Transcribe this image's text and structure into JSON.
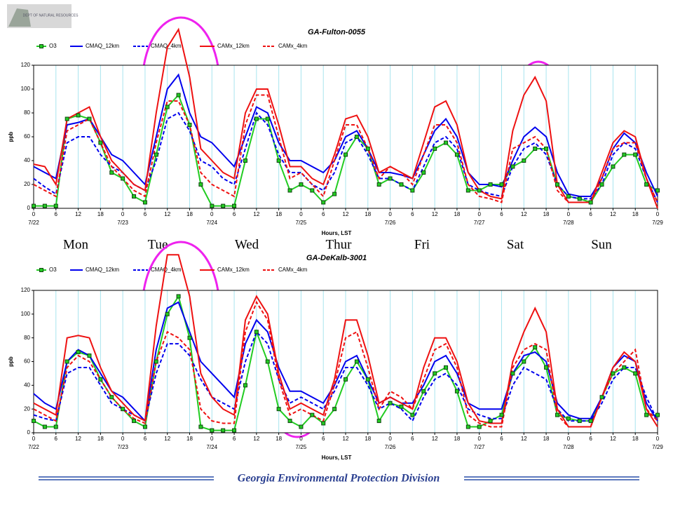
{
  "logo_text": "DEPT OF NATURAL RESOURCES",
  "day_labels": [
    "Mon",
    "Tue",
    "Wed",
    "Thur",
    "Fri",
    "Sat",
    "Sun"
  ],
  "species_labels": [
    "O₃",
    "O₃"
  ],
  "footer": "Georgia Environmental Protection Division",
  "chart_data": [
    {
      "type": "line",
      "title": "GA-Fulton-0055",
      "xlabel": "Hours, LST",
      "ylabel": "ppb",
      "grid": "x",
      "xlim": [
        0,
        168
      ],
      "ylim": [
        0,
        120
      ],
      "yticks": [
        0,
        20,
        40,
        60,
        80,
        100,
        120
      ],
      "xticks": [
        0,
        6,
        12,
        18,
        {
          "value": 24,
          "label": "0"
        },
        {
          "value": 30,
          "label": "6"
        },
        {
          "value": 36,
          "label": "12"
        },
        {
          "value": 42,
          "label": "18"
        },
        {
          "value": 48,
          "label": "0"
        },
        {
          "value": 54,
          "label": "6"
        },
        {
          "value": 60,
          "label": "12"
        },
        {
          "value": 66,
          "label": "18"
        },
        {
          "value": 72,
          "label": "0"
        },
        {
          "value": 78,
          "label": "6"
        },
        {
          "value": 84,
          "label": "12"
        },
        {
          "value": 90,
          "label": "18"
        },
        {
          "value": 96,
          "label": "0"
        },
        {
          "value": 102,
          "label": "6"
        },
        {
          "value": 108,
          "label": "12"
        },
        {
          "value": 114,
          "label": "18"
        },
        {
          "value": 120,
          "label": "0"
        },
        {
          "value": 126,
          "label": "6"
        },
        {
          "value": 132,
          "label": "12"
        },
        {
          "value": 138,
          "label": "18"
        },
        {
          "value": 144,
          "label": "0"
        },
        {
          "value": 150,
          "label": "6"
        },
        {
          "value": 156,
          "label": "12"
        },
        {
          "value": 162,
          "label": "18"
        },
        {
          "value": 168,
          "label": "0"
        }
      ],
      "date_ticks": [
        {
          "value": 0,
          "label": "7/22"
        },
        {
          "value": 24,
          "label": "7/23"
        },
        {
          "value": 48,
          "label": "7/24"
        },
        {
          "value": 72,
          "label": "7/25"
        },
        {
          "value": 96,
          "label": "7/26"
        },
        {
          "value": 120,
          "label": "7/27"
        },
        {
          "value": 144,
          "label": "7/28"
        },
        {
          "value": 168,
          "label": "7/29"
        }
      ],
      "x": [
        0,
        3,
        6,
        9,
        12,
        15,
        18,
        21,
        24,
        27,
        30,
        33,
        36,
        39,
        42,
        45,
        48,
        51,
        54,
        57,
        60,
        63,
        66,
        69,
        72,
        75,
        78,
        81,
        84,
        87,
        90,
        93,
        96,
        99,
        102,
        105,
        108,
        111,
        114,
        117,
        120,
        123,
        126,
        129,
        132,
        135,
        138,
        141,
        144,
        147,
        150,
        153,
        156,
        159,
        162,
        165,
        168
      ],
      "series": [
        {
          "name": "O3",
          "color": "#22cc22",
          "dash": false,
          "marker": "square",
          "values": [
            2,
            2,
            2,
            75,
            78,
            75,
            55,
            30,
            25,
            10,
            5,
            45,
            85,
            95,
            70,
            20,
            2,
            2,
            2,
            40,
            75,
            75,
            40,
            15,
            20,
            15,
            5,
            12,
            45,
            60,
            50,
            20,
            25,
            20,
            15,
            30,
            50,
            55,
            45,
            15,
            15,
            20,
            20,
            35,
            40,
            50,
            50,
            20,
            10,
            8,
            5,
            20,
            35,
            45,
            45,
            20,
            15
          ]
        },
        {
          "name": "CMAQ_12km",
          "color": "#0000ee",
          "dash": false,
          "values": [
            35,
            30,
            25,
            70,
            72,
            75,
            60,
            45,
            40,
            30,
            20,
            60,
            100,
            112,
            80,
            60,
            55,
            45,
            35,
            60,
            85,
            80,
            55,
            40,
            40,
            35,
            30,
            40,
            60,
            65,
            50,
            30,
            30,
            28,
            25,
            45,
            65,
            75,
            60,
            30,
            20,
            20,
            18,
            40,
            60,
            68,
            60,
            30,
            12,
            10,
            10,
            25,
            50,
            63,
            55,
            30,
            10
          ]
        },
        {
          "name": "CMAQ_4km",
          "color": "#0000ee",
          "dash": true,
          "values": [
            25,
            18,
            12,
            55,
            60,
            60,
            45,
            35,
            30,
            20,
            15,
            40,
            75,
            80,
            65,
            40,
            35,
            25,
            20,
            50,
            80,
            70,
            45,
            30,
            30,
            20,
            15,
            30,
            55,
            60,
            45,
            25,
            25,
            20,
            15,
            35,
            55,
            60,
            50,
            20,
            15,
            12,
            10,
            35,
            50,
            55,
            45,
            20,
            10,
            8,
            8,
            20,
            45,
            55,
            50,
            25,
            5
          ]
        },
        {
          "name": "CAMx_12km",
          "color": "#ee1111",
          "dash": false,
          "values": [
            37,
            35,
            20,
            75,
            80,
            85,
            60,
            40,
            30,
            20,
            15,
            80,
            135,
            150,
            110,
            50,
            40,
            30,
            25,
            80,
            100,
            100,
            70,
            35,
            35,
            25,
            20,
            45,
            75,
            78,
            60,
            30,
            35,
            30,
            25,
            55,
            85,
            90,
            70,
            30,
            15,
            10,
            8,
            65,
            95,
            110,
            90,
            20,
            5,
            5,
            5,
            30,
            55,
            65,
            60,
            25,
            0
          ]
        },
        {
          "name": "CAMx_4km",
          "color": "#ee1111",
          "dash": true,
          "values": [
            20,
            15,
            10,
            65,
            70,
            75,
            55,
            35,
            25,
            15,
            10,
            55,
            90,
            90,
            70,
            30,
            20,
            15,
            10,
            70,
            95,
            95,
            60,
            25,
            30,
            20,
            10,
            40,
            70,
            70,
            50,
            25,
            35,
            30,
            20,
            45,
            70,
            70,
            55,
            20,
            10,
            8,
            5,
            50,
            55,
            60,
            50,
            15,
            5,
            5,
            5,
            25,
            50,
            55,
            55,
            25,
            5
          ]
        }
      ]
    },
    {
      "type": "line",
      "title": "GA-DeKalb-3001",
      "xlabel": "Hours, LST",
      "ylabel": "ppb",
      "grid": "x",
      "xlim": [
        0,
        168
      ],
      "ylim": [
        0,
        120
      ],
      "yticks": [
        0,
        20,
        40,
        60,
        80,
        100,
        120
      ],
      "xticks": [
        0,
        6,
        12,
        18,
        {
          "value": 24,
          "label": "0"
        },
        {
          "value": 30,
          "label": "6"
        },
        {
          "value": 36,
          "label": "12"
        },
        {
          "value": 42,
          "label": "18"
        },
        {
          "value": 48,
          "label": "0"
        },
        {
          "value": 54,
          "label": "6"
        },
        {
          "value": 60,
          "label": "12"
        },
        {
          "value": 66,
          "label": "18"
        },
        {
          "value": 72,
          "label": "0"
        },
        {
          "value": 78,
          "label": "6"
        },
        {
          "value": 84,
          "label": "12"
        },
        {
          "value": 90,
          "label": "18"
        },
        {
          "value": 96,
          "label": "0"
        },
        {
          "value": 102,
          "label": "6"
        },
        {
          "value": 108,
          "label": "12"
        },
        {
          "value": 114,
          "label": "18"
        },
        {
          "value": 120,
          "label": "0"
        },
        {
          "value": 126,
          "label": "6"
        },
        {
          "value": 132,
          "label": "12"
        },
        {
          "value": 138,
          "label": "18"
        },
        {
          "value": 144,
          "label": "0"
        },
        {
          "value": 150,
          "label": "6"
        },
        {
          "value": 156,
          "label": "12"
        },
        {
          "value": 162,
          "label": "18"
        },
        {
          "value": 168,
          "label": "0"
        }
      ],
      "date_ticks": [
        {
          "value": 0,
          "label": "7/22"
        },
        {
          "value": 24,
          "label": "7/23"
        },
        {
          "value": 48,
          "label": "7/24"
        },
        {
          "value": 72,
          "label": "7/25"
        },
        {
          "value": 96,
          "label": "7/26"
        },
        {
          "value": 120,
          "label": "7/27"
        },
        {
          "value": 144,
          "label": "7/28"
        },
        {
          "value": 168,
          "label": "7/29"
        }
      ],
      "x": [
        0,
        3,
        6,
        9,
        12,
        15,
        18,
        21,
        24,
        27,
        30,
        33,
        36,
        39,
        42,
        45,
        48,
        51,
        54,
        57,
        60,
        63,
        66,
        69,
        72,
        75,
        78,
        81,
        84,
        87,
        90,
        93,
        96,
        99,
        102,
        105,
        108,
        111,
        114,
        117,
        120,
        123,
        126,
        129,
        132,
        135,
        138,
        141,
        144,
        147,
        150,
        153,
        156,
        159,
        162,
        165,
        168
      ],
      "series": [
        {
          "name": "O3",
          "color": "#22cc22",
          "dash": false,
          "marker": "square",
          "values": [
            10,
            5,
            5,
            60,
            68,
            65,
            45,
            30,
            20,
            10,
            5,
            60,
            100,
            115,
            80,
            5,
            2,
            2,
            2,
            40,
            85,
            60,
            20,
            10,
            5,
            15,
            8,
            20,
            45,
            60,
            45,
            10,
            25,
            22,
            15,
            35,
            50,
            55,
            35,
            5,
            5,
            10,
            15,
            50,
            60,
            72,
            55,
            15,
            12,
            10,
            10,
            30,
            50,
            55,
            50,
            15,
            15
          ]
        },
        {
          "name": "CMAQ_12km",
          "color": "#0000ee",
          "dash": false,
          "values": [
            33,
            25,
            20,
            60,
            70,
            65,
            50,
            35,
            30,
            20,
            10,
            70,
            105,
            110,
            85,
            60,
            50,
            40,
            30,
            75,
            95,
            85,
            55,
            35,
            35,
            30,
            25,
            40,
            60,
            65,
            45,
            25,
            30,
            25,
            25,
            40,
            60,
            65,
            50,
            25,
            20,
            20,
            20,
            50,
            65,
            68,
            60,
            25,
            15,
            12,
            12,
            30,
            55,
            65,
            60,
            25,
            10
          ]
        },
        {
          "name": "CMAQ_4km",
          "color": "#0000ee",
          "dash": true,
          "values": [
            15,
            12,
            10,
            50,
            55,
            55,
            40,
            25,
            20,
            15,
            10,
            50,
            75,
            75,
            65,
            45,
            30,
            25,
            20,
            60,
            85,
            75,
            45,
            25,
            30,
            25,
            20,
            35,
            55,
            55,
            40,
            20,
            25,
            20,
            10,
            30,
            45,
            50,
            40,
            20,
            15,
            12,
            12,
            40,
            55,
            50,
            45,
            20,
            10,
            10,
            10,
            25,
            45,
            55,
            55,
            30,
            10
          ]
        },
        {
          "name": "CAMx_12km",
          "color": "#ee1111",
          "dash": false,
          "values": [
            25,
            20,
            15,
            80,
            82,
            80,
            55,
            35,
            25,
            15,
            10,
            90,
            150,
            150,
            115,
            50,
            30,
            20,
            15,
            95,
            115,
            100,
            50,
            20,
            25,
            20,
            15,
            45,
            95,
            95,
            65,
            25,
            30,
            25,
            20,
            55,
            80,
            80,
            60,
            25,
            10,
            8,
            8,
            60,
            85,
            105,
            85,
            20,
            5,
            5,
            5,
            30,
            55,
            68,
            60,
            20,
            5
          ]
        },
        {
          "name": "CAMx_4km",
          "color": "#ee1111",
          "dash": true,
          "values": [
            20,
            15,
            10,
            55,
            65,
            60,
            45,
            30,
            20,
            12,
            8,
            60,
            85,
            80,
            70,
            20,
            10,
            8,
            8,
            85,
            110,
            95,
            45,
            15,
            20,
            15,
            10,
            40,
            80,
            85,
            55,
            20,
            35,
            30,
            20,
            45,
            70,
            75,
            55,
            15,
            8,
            5,
            5,
            55,
            70,
            75,
            70,
            15,
            5,
            5,
            5,
            30,
            50,
            60,
            70,
            20,
            10
          ]
        }
      ]
    }
  ]
}
